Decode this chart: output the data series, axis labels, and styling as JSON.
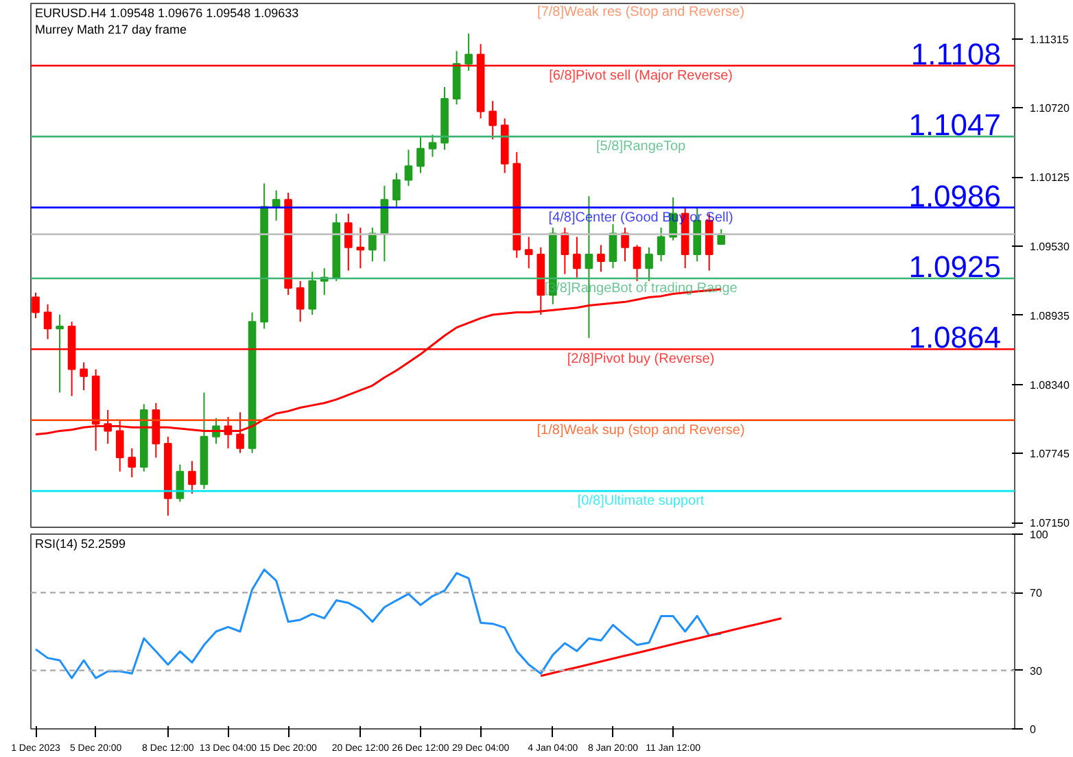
{
  "chart_data": [
    {
      "type": "candlestick",
      "title": "EURUSD.H4 1.09548 1.09676 1.09548 1.09633",
      "subtitle": "Murrey Math 217 day frame",
      "categories": [
        null,
        null,
        null,
        null,
        null,
        null,
        null,
        null,
        null,
        null,
        null,
        null,
        null,
        null,
        null,
        null,
        null,
        null,
        null,
        null,
        null,
        null,
        null,
        null,
        null,
        null,
        null,
        null,
        null,
        null,
        null,
        null,
        null,
        null,
        null,
        null,
        null,
        null,
        null,
        null,
        null,
        null,
        null,
        null,
        null,
        null,
        null,
        null,
        null,
        null,
        null,
        null,
        null,
        null,
        null,
        null,
        null,
        null,
        null,
        null,
        null,
        null,
        null,
        null,
        null,
        null,
        null,
        null,
        null,
        null,
        null,
        null,
        null,
        null,
        null,
        null,
        null,
        null,
        null,
        null,
        null,
        null
      ],
      "ohlc": [
        [
          1.0909,
          1.0913,
          1.0891,
          1.0896
        ],
        [
          1.0896,
          1.0903,
          1.0873,
          1.0882
        ],
        [
          1.0882,
          1.0894,
          1.0827,
          1.0884
        ],
        [
          1.0884,
          1.0888,
          1.0824,
          1.0847
        ],
        [
          1.0847,
          1.0853,
          1.0829,
          1.0841
        ],
        [
          1.0841,
          1.0847,
          1.0777,
          1.08
        ],
        [
          1.08,
          1.0812,
          1.0783,
          1.0794
        ],
        [
          1.0794,
          1.0803,
          1.0759,
          1.0771
        ],
        [
          1.0771,
          1.0779,
          1.0754,
          1.0763
        ],
        [
          1.0763,
          1.0817,
          1.0759,
          1.0812
        ],
        [
          1.0812,
          1.0818,
          1.0771,
          1.0783
        ],
        [
          1.0783,
          1.0789,
          1.0721,
          1.0736
        ],
        [
          1.0736,
          1.0765,
          1.0733,
          1.0759
        ],
        [
          1.0759,
          1.0768,
          1.074,
          1.0748
        ],
        [
          1.0748,
          1.0827,
          1.0744,
          1.0789
        ],
        [
          1.0789,
          1.0805,
          1.0783,
          1.0798
        ],
        [
          1.0798,
          1.0806,
          1.0779,
          1.0791
        ],
        [
          1.0791,
          1.081,
          1.0775,
          1.0779
        ],
        [
          1.0779,
          1.0896,
          1.0775,
          1.0888
        ],
        [
          1.0888,
          1.1007,
          1.0882,
          1.0987
        ],
        [
          1.0987,
          1.1001,
          1.0975,
          1.0993
        ],
        [
          1.0993,
          1.0999,
          1.0911,
          1.0917
        ],
        [
          1.0917,
          1.0923,
          1.0888,
          1.0899
        ],
        [
          1.0899,
          1.0931,
          1.0894,
          1.0923
        ],
        [
          1.0923,
          1.0934,
          1.0911,
          1.0926
        ],
        [
          1.0926,
          1.0981,
          1.0923,
          1.0973
        ],
        [
          1.0973,
          1.0981,
          1.0932,
          1.0952
        ],
        [
          1.0952,
          1.0969,
          1.0934,
          1.095
        ],
        [
          1.095,
          1.0969,
          1.094,
          1.0964
        ],
        [
          1.0964,
          1.1005,
          1.094,
          1.0993
        ],
        [
          1.0993,
          1.1016,
          1.0987,
          1.101
        ],
        [
          1.101,
          1.1036,
          1.1005,
          1.1022
        ],
        [
          1.1022,
          1.1048,
          1.1016,
          1.1037
        ],
        [
          1.1037,
          1.1049,
          1.103,
          1.1042
        ],
        [
          1.1042,
          1.109,
          1.1036,
          1.108
        ],
        [
          1.108,
          1.1121,
          1.1075,
          1.111
        ],
        [
          1.111,
          1.1136,
          1.1104,
          1.1118
        ],
        [
          1.1118,
          1.1127,
          1.1063,
          1.1069
        ],
        [
          1.1069,
          1.1078,
          1.1045,
          1.1057
        ],
        [
          1.1057,
          1.1063,
          1.1016,
          1.1024
        ],
        [
          1.1024,
          1.1034,
          1.0943,
          1.095
        ],
        [
          1.095,
          1.0961,
          1.0934,
          1.0946
        ],
        [
          1.0946,
          1.0952,
          1.0894,
          1.0911
        ],
        [
          1.0911,
          1.0969,
          1.0903,
          1.0964
        ],
        [
          1.0964,
          1.0969,
          1.0929,
          1.0946
        ],
        [
          1.0946,
          1.0961,
          1.0926,
          1.0934
        ],
        [
          1.0934,
          1.0996,
          1.0874,
          1.0946
        ],
        [
          1.0946,
          1.0954,
          1.0931,
          1.094
        ],
        [
          1.094,
          1.0972,
          1.0934,
          1.0964
        ],
        [
          1.0964,
          1.0969,
          1.094,
          1.0952
        ],
        [
          1.0952,
          1.0954,
          1.0923,
          1.0934
        ],
        [
          1.0934,
          1.0952,
          1.0923,
          1.0946
        ],
        [
          1.0946,
          1.0969,
          1.094,
          1.0961
        ],
        [
          1.0961,
          1.0995,
          1.0958,
          1.0981
        ],
        [
          1.0981,
          1.0987,
          1.0934,
          1.0946
        ],
        [
          1.0946,
          1.0987,
          1.094,
          1.0975
        ],
        [
          1.0975,
          1.0981,
          1.0932,
          1.0946
        ],
        [
          1.09548,
          1.09676,
          1.09548,
          1.09633
        ],
        null,
        null,
        null,
        null,
        null,
        null,
        null,
        null,
        null,
        null,
        null,
        null,
        null,
        null,
        null,
        null,
        null,
        null,
        null,
        null,
        null,
        null,
        null,
        null
      ],
      "colors": [
        "#ff0000",
        "#ff0000",
        "#1f9e1f",
        "#ff0000",
        "#ff0000",
        "#ff0000",
        "#ff0000",
        "#ff0000",
        "#ff0000",
        "#1f9e1f",
        "#ff0000",
        "#ff0000",
        "#1f9e1f",
        "#ff0000",
        "#1f9e1f",
        "#1f9e1f",
        "#ff0000",
        "#ff0000",
        "#1f9e1f",
        "#1f9e1f",
        "#1f9e1f",
        "#ff0000",
        "#ff0000",
        "#1f9e1f",
        "#1f9e1f",
        "#1f9e1f",
        "#ff0000",
        "#ff0000",
        "#1f9e1f",
        "#1f9e1f",
        "#1f9e1f",
        "#1f9e1f",
        "#1f9e1f",
        "#1f9e1f",
        "#1f9e1f",
        "#1f9e1f",
        "#1f9e1f",
        "#ff0000",
        "#ff0000",
        "#ff0000",
        "#ff0000",
        "#ff0000",
        "#ff0000",
        "#1f9e1f",
        "#ff0000",
        "#ff0000",
        "#1f9e1f",
        "#ff0000",
        "#1f9e1f",
        "#ff0000",
        "#ff0000",
        "#1f9e1f",
        "#1f9e1f",
        "#1f9e1f",
        "#ff0000",
        "#1f9e1f",
        "#ff0000",
        "#1f9e1f",
        null,
        null,
        null,
        null,
        null,
        null,
        null,
        null,
        null,
        null,
        null,
        null,
        null,
        null,
        null,
        null,
        null,
        null,
        null,
        null,
        null,
        null,
        null,
        null
      ],
      "series": [
        {
          "type": "line",
          "color": "#ff0000",
          "values": [
            1.0791,
            1.0792,
            1.0794,
            1.0795,
            1.0797,
            1.0798,
            1.0798,
            1.0798,
            1.0797,
            1.0797,
            1.0797,
            1.0797,
            1.0796,
            1.0795,
            1.0794,
            1.0794,
            1.0794,
            1.0794,
            1.0798,
            1.0804,
            1.0809,
            1.0811,
            1.0814,
            1.0816,
            1.0818,
            1.0821,
            1.0825,
            1.0829,
            1.0833,
            1.084,
            1.0846,
            1.0853,
            1.086,
            1.0868,
            1.0876,
            1.0883,
            1.0887,
            1.0891,
            1.0894,
            1.0895,
            1.0896,
            1.0896,
            1.0897,
            1.0898,
            1.0899,
            1.09,
            1.0902,
            1.0903,
            1.0904,
            1.0905,
            1.0907,
            1.0909,
            1.091,
            1.0912,
            1.0913,
            1.0914,
            1.0915,
            1.0916,
            null,
            null,
            null,
            null,
            null,
            null,
            null,
            null,
            null,
            null,
            null,
            null,
            null,
            null,
            null,
            null,
            null,
            null,
            null,
            null,
            null,
            null,
            null,
            null
          ]
        }
      ],
      "ylim": [
        1.0711,
        1.1162
      ],
      "yticks": [
        {
          "value": 1.0715,
          "label": "1.07150"
        },
        {
          "value": 1.07745,
          "label": "1.07745"
        },
        {
          "value": 1.0834,
          "label": "1.08340"
        },
        {
          "value": 1.08935,
          "label": "1.08935"
        },
        {
          "value": 1.0953,
          "label": "1.09530"
        },
        {
          "value": 1.10125,
          "label": "1.10125"
        },
        {
          "value": 1.1072,
          "label": "1.10720"
        },
        {
          "value": 1.11315,
          "label": "1.11315"
        }
      ],
      "tick_labels": "y",
      "ref_lines": [
        {
          "axis": "y",
          "value": 1.11084,
          "label": "[6/8]Pivot sell (Major Reverse)",
          "color": "#ff0000"
        },
        {
          "axis": "y",
          "value": 1.10474,
          "label": "[5/8]RangeTop",
          "color": "#3cb371"
        },
        {
          "axis": "y",
          "value": 1.09863,
          "label": "[4/8]Center (Good Buy or Sell)",
          "color": "#0000ff"
        },
        {
          "axis": "y",
          "value": 1.09633,
          "color": "#c0c0c0"
        },
        {
          "axis": "y",
          "value": 1.09253,
          "label": "[3/8]RangeBot of trading Range",
          "color": "#3cb371"
        },
        {
          "axis": "y",
          "value": 1.08643,
          "label": "[2/8]Pivot buy (Reverse)",
          "color": "#ff0000"
        },
        {
          "axis": "y",
          "value": 1.08032,
          "label": "[1/8]Weak sup (stop and Reverse)",
          "color": "#ff4500"
        },
        {
          "axis": "y",
          "value": 1.07422,
          "label": "[0/8]Ultimate support",
          "color": "#00e5ee"
        }
      ],
      "annotations": [
        "[7/8]Weak res (Stop and Reverse)",
        {
          "text": "1.1108",
          "y": 1.11084
        },
        {
          "text": "1.1047",
          "y": 1.10474
        },
        {
          "text": "1.0986",
          "y": 1.09863
        },
        {
          "text": "1.0925",
          "y": 1.09253
        },
        {
          "text": "1.0864",
          "y": 1.08643
        }
      ]
    },
    {
      "type": "line",
      "title": "RSI(14) 52.2599",
      "categories": [
        "1 Dec 2023",
        null,
        null,
        null,
        null,
        "5 Dec 20:00",
        null,
        null,
        null,
        null,
        null,
        "8 Dec 12:00",
        null,
        null,
        null,
        null,
        "13 Dec 04:00",
        null,
        null,
        null,
        null,
        "15 Dec 20:00",
        null,
        null,
        null,
        null,
        null,
        "20 Dec 12:00",
        null,
        null,
        null,
        null,
        "26 Dec 12:00",
        null,
        null,
        null,
        null,
        "29 Dec 04:00",
        null,
        null,
        null,
        null,
        null,
        "4 Jan 04:00",
        null,
        null,
        null,
        null,
        "8 Jan 20:00",
        null,
        null,
        null,
        null,
        "11 Jan 12:00",
        null,
        null,
        null,
        null,
        null,
        null,
        null,
        null,
        null,
        null,
        null,
        null,
        null,
        null,
        null,
        null,
        null,
        null,
        null,
        null,
        null,
        null,
        null,
        null,
        null,
        null,
        null,
        null
      ],
      "series": [
        {
          "color": "#1e90ff",
          "values": [
            40.9,
            36.4,
            35.2,
            26.1,
            35.2,
            26.1,
            29.6,
            29.6,
            28.4,
            46.5,
            39.8,
            33.0,
            39.8,
            34.1,
            43.1,
            50.0,
            52.3,
            50.0,
            71.6,
            81.8,
            76.1,
            55.0,
            56.0,
            59.0,
            56.8,
            66.0,
            64.7,
            61.3,
            55.0,
            62.5,
            66.0,
            69.3,
            63.6,
            68.2,
            71.0,
            80.0,
            77.3,
            54.5,
            54.0,
            52.0,
            40.0,
            33.0,
            28.4,
            38.0,
            44.0,
            40.0,
            46.5,
            45.4,
            53.4,
            48.0,
            43.1,
            44.3,
            57.9,
            57.9,
            50.0,
            58.0,
            48.0,
            48.9,
            null,
            null,
            null,
            null,
            null,
            null,
            null,
            null,
            null,
            null,
            null,
            null,
            null,
            null,
            null,
            null,
            null,
            null,
            null,
            null,
            null,
            null,
            null,
            null
          ]
        },
        {
          "color": "#ff0000",
          "values": [
            null,
            null,
            null,
            null,
            null,
            null,
            null,
            null,
            null,
            null,
            null,
            null,
            null,
            null,
            null,
            null,
            null,
            null,
            null,
            null,
            null,
            null,
            null,
            null,
            null,
            null,
            null,
            null,
            null,
            null,
            null,
            null,
            null,
            null,
            null,
            null,
            null,
            null,
            null,
            null,
            null,
            null,
            27.2,
            28.7,
            30.2,
            31.6,
            33.1,
            34.6,
            36.1,
            37.6,
            39.0,
            40.5,
            42.0,
            43.5,
            45.0,
            46.4,
            47.9,
            49.4,
            50.9,
            52.4,
            53.8,
            55.3,
            56.8,
            null,
            null,
            null,
            null,
            null,
            null,
            null,
            null,
            null,
            null,
            null,
            null,
            null,
            null,
            null,
            null,
            null,
            null,
            null
          ]
        }
      ],
      "ylim": [
        0,
        100
      ],
      "yticks": [
        0,
        30,
        70,
        100
      ],
      "ref_lines": [
        {
          "axis": "y",
          "value": 70,
          "color": "#b0b0b0",
          "line_style": "dashed"
        },
        {
          "axis": "y",
          "value": 30,
          "color": "#b0b0b0",
          "line_style": "dashed"
        }
      ]
    }
  ]
}
